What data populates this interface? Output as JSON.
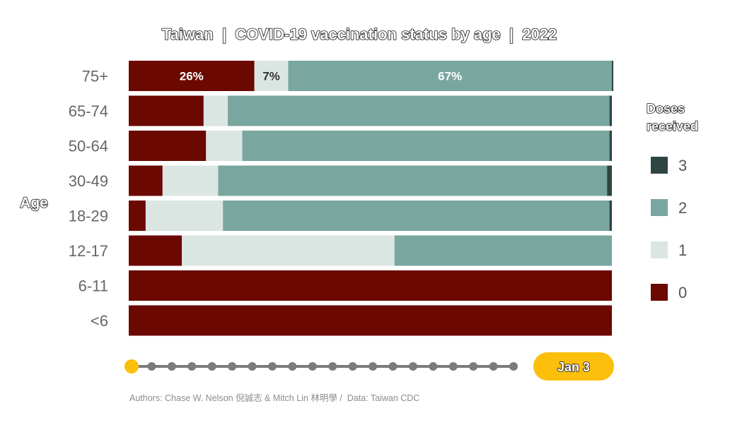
{
  "chart_data": {
    "type": "bar",
    "stacked": true,
    "orientation": "horizontal",
    "title": "Taiwan  |  COVID-19 vaccination status by age  |  2022",
    "ylabel": "Age",
    "xlim": [
      0,
      100
    ],
    "categories": [
      "75+",
      "65-74",
      "50-64",
      "30-49",
      "18-29",
      "12-17",
      "6-11",
      "<6"
    ],
    "series": [
      {
        "name": "0",
        "color": "#6b0800",
        "values": [
          26,
          15.5,
          16,
          7,
          3.5,
          11,
          100,
          100
        ]
      },
      {
        "name": "1",
        "color": "#dbe6e3",
        "values": [
          7,
          5,
          7.5,
          11.5,
          16,
          44,
          0,
          0
        ]
      },
      {
        "name": "2",
        "color": "#7aa6a0",
        "values": [
          67,
          79,
          76,
          80.5,
          80,
          45,
          0,
          0
        ]
      },
      {
        "name": "3",
        "color": "#2f4544",
        "values": [
          0.3,
          0.5,
          0.5,
          1,
          0.5,
          0,
          0,
          0
        ]
      }
    ],
    "data_labels": [
      {
        "category": "75+",
        "series": "0",
        "text": "26%"
      },
      {
        "category": "75+",
        "series": "1",
        "text": "7%"
      },
      {
        "category": "75+",
        "series": "2",
        "text": "67%"
      }
    ],
    "legend": {
      "title_line1": "Doses",
      "title_line2": "received",
      "order": [
        "3",
        "2",
        "1",
        "0"
      ],
      "placement": "right"
    },
    "grid": false
  },
  "slider": {
    "step_count": 20,
    "active_step": 0,
    "date_label": "Jan 3",
    "accent_color": "#fbbf0c",
    "track_color": "#7b7b7b"
  },
  "footer": {
    "credits": "Authors: Chase W. Nelson 倪誠志 & Mitch Lin 林明學 /  Data: Taiwan CDC"
  }
}
